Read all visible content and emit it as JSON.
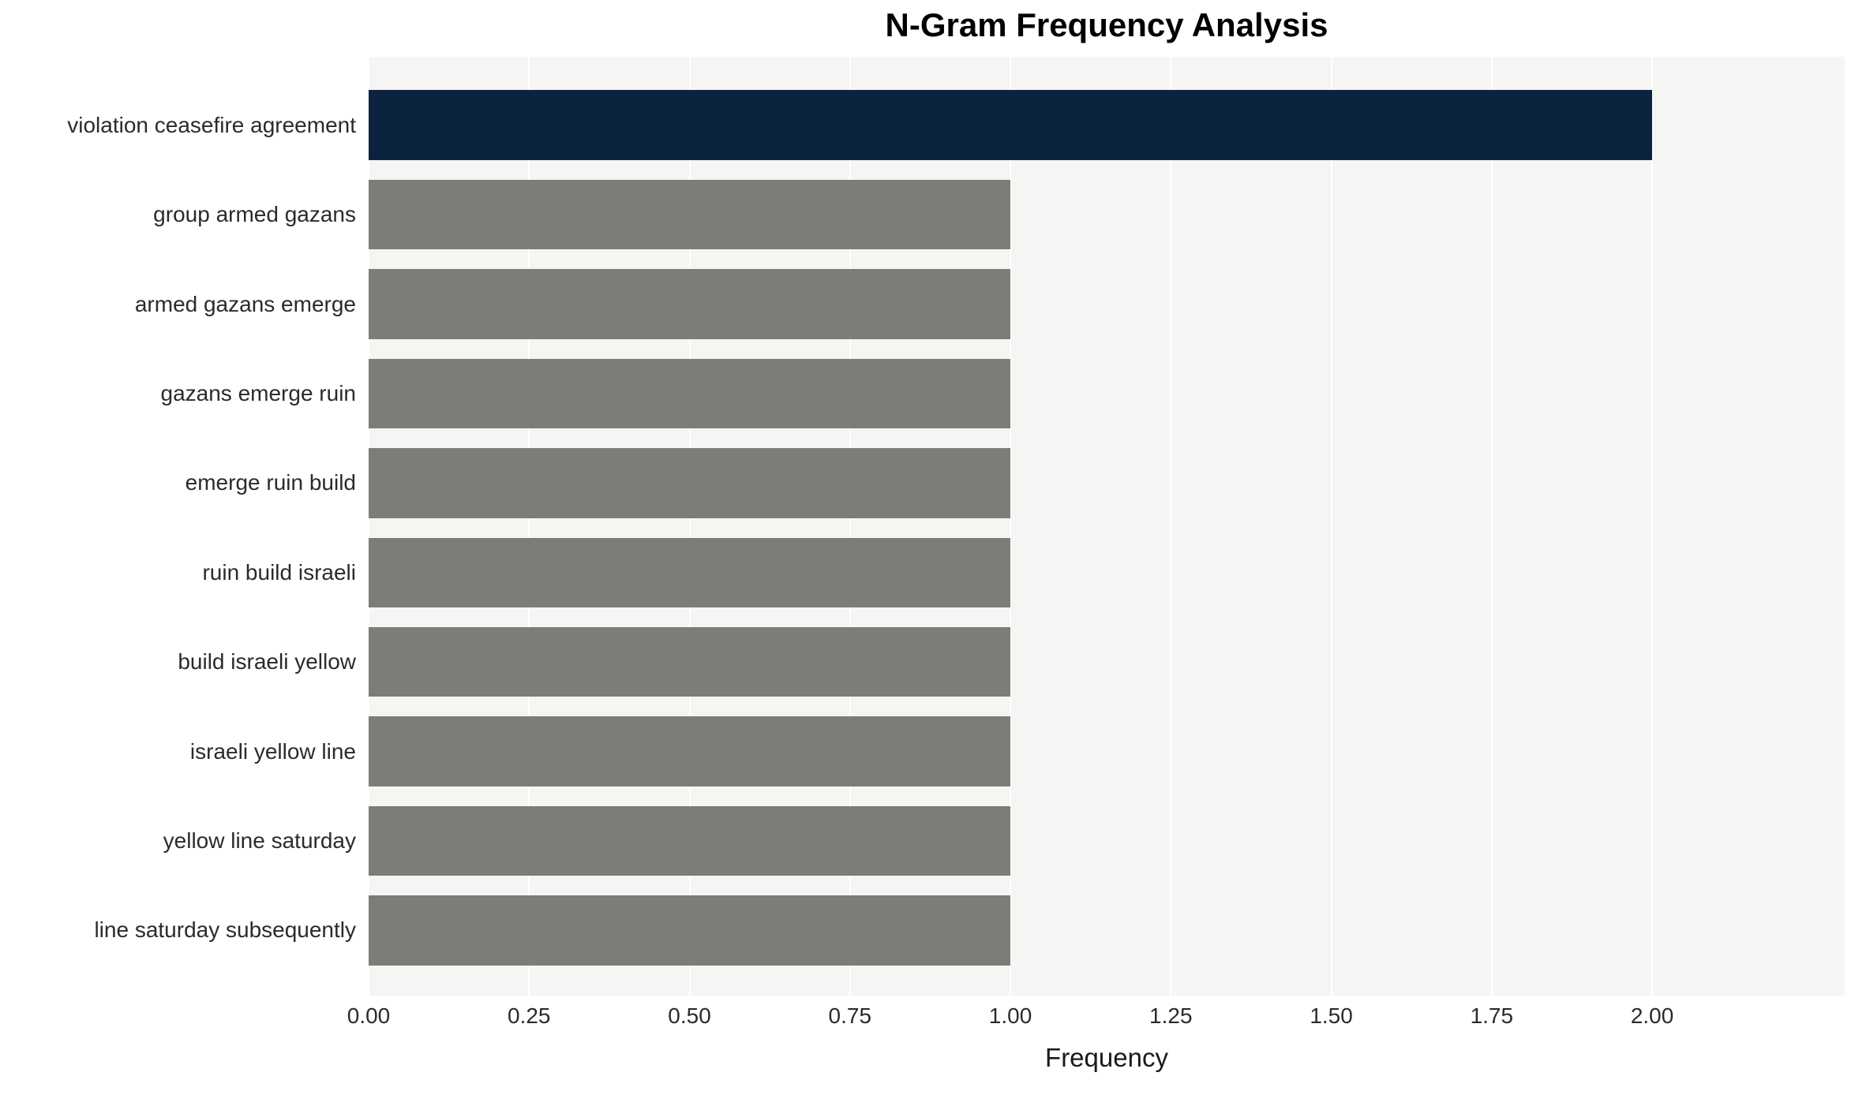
{
  "chart_data": {
    "type": "bar",
    "orientation": "horizontal",
    "title": "N-Gram Frequency Analysis",
    "xlabel": "Frequency",
    "ylabel": "",
    "categories": [
      "violation ceasefire agreement",
      "group armed gazans",
      "armed gazans emerge",
      "gazans emerge ruin",
      "emerge ruin build",
      "ruin build israeli",
      "build israeli yellow",
      "israeli yellow line",
      "yellow line saturday",
      "line saturday subsequently"
    ],
    "values": [
      2,
      1,
      1,
      1,
      1,
      1,
      1,
      1,
      1,
      1
    ],
    "xlim": [
      0,
      2.3
    ],
    "xticks": [
      {
        "label": "0.00",
        "value": 0
      },
      {
        "label": "0.25",
        "value": 0.25
      },
      {
        "label": "0.50",
        "value": 0.5
      },
      {
        "label": "0.75",
        "value": 0.75
      },
      {
        "label": "1.00",
        "value": 1.0
      },
      {
        "label": "1.25",
        "value": 1.25
      },
      {
        "label": "1.50",
        "value": 1.5
      },
      {
        "label": "1.75",
        "value": 1.75
      },
      {
        "label": "2.00",
        "value": 2.0
      }
    ],
    "bar_colors": [
      "#0c2340",
      "#7d7c77",
      "#7d7c77",
      "#7d7c77",
      "#7d7c77",
      "#7d7c77",
      "#7d7c77",
      "#7d7c77",
      "#7d7c77",
      "#7d7c77"
    ],
    "highlight_color": "#0c2340",
    "default_bar_color": "#7d7c77",
    "plot_background": "#f5f5f3",
    "grid_color": "#ffffff",
    "grid": true,
    "legend": null
  }
}
